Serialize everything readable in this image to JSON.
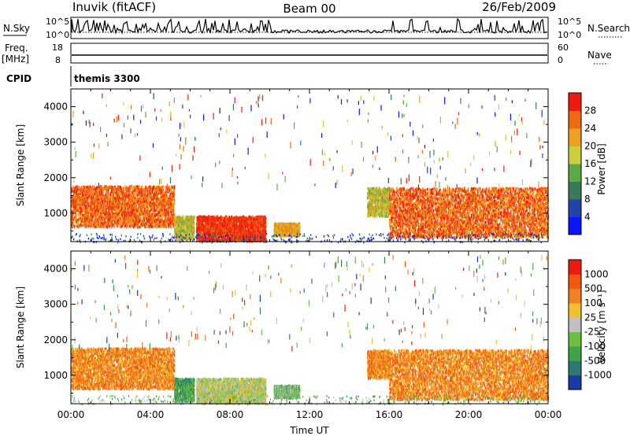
{
  "header": {
    "station": "Inuvik (fitACF)",
    "beam": "Beam 00",
    "date": "26/Feb/2009"
  },
  "panels": {
    "nsky": {
      "left_label": "N.Sky",
      "right_label": "N.Search",
      "left_ticks": [
        "10^5",
        "10^0"
      ],
      "right_ticks": [
        "10^5",
        "10^0"
      ]
    },
    "freq": {
      "left_label_line1": "Freq.",
      "left_label_line2": "[MHz]",
      "right_label": "Nave",
      "left_ticks": [
        "18",
        "8"
      ],
      "right_ticks": [
        "60",
        "0"
      ]
    },
    "cpid": {
      "label": "CPID",
      "value": "themis 3300"
    }
  },
  "chart_data": [
    {
      "type": "heatmap",
      "panel": "power",
      "ylabel": "Slant Range [km]",
      "xlabel": "",
      "yticks": [
        "1000",
        "2000",
        "3000",
        "4000"
      ],
      "ylim": [
        200,
        4500
      ],
      "xlim": [
        0,
        24
      ],
      "colorbar": {
        "label": "Power [dB]",
        "ticks": [
          "4",
          "8",
          "12",
          "16",
          "20",
          "24",
          "28"
        ],
        "colors": [
          "#0a14ff",
          "#2244aa",
          "#3a7a58",
          "#5aaa48",
          "#ccd040",
          "#f0a020",
          "#f06a10",
          "#ee1c10"
        ]
      },
      "scatter_regions": [
        {
          "t0": 0.0,
          "t1": 5.2,
          "r0": 600,
          "r1": 1750,
          "level": 6
        },
        {
          "t0": 5.2,
          "t1": 6.2,
          "r0": 250,
          "r1": 900,
          "level": 4
        },
        {
          "t0": 6.3,
          "t1": 9.8,
          "r0": 200,
          "r1": 900,
          "level": 7
        },
        {
          "t0": 10.2,
          "t1": 11.5,
          "r0": 350,
          "r1": 700,
          "level": 5
        },
        {
          "t0": 14.9,
          "t1": 16.0,
          "r0": 900,
          "r1": 1700,
          "level": 4
        },
        {
          "t0": 16.0,
          "t1": 24.0,
          "r0": 300,
          "r1": 1700,
          "level": 6
        }
      ]
    },
    {
      "type": "heatmap",
      "panel": "velocity",
      "ylabel": "Slant Range [km]",
      "xlabel": "Time UT",
      "xticks": [
        "00:00",
        "04:00",
        "08:00",
        "12:00",
        "16:00",
        "20:00",
        "00:00"
      ],
      "yticks": [
        "1000",
        "2000",
        "3000",
        "4000"
      ],
      "ylim": [
        200,
        4500
      ],
      "xlim": [
        0,
        24
      ],
      "colorbar": {
        "label": "Velocity [m s⁻¹]",
        "ticks": [
          "1000",
          "500",
          "100",
          "25",
          "-25",
          "-100",
          "-500",
          "-1000"
        ],
        "colors": [
          "#1a3aa8",
          "#2f7a70",
          "#3fa448",
          "#6ac040",
          "#c0c0c0",
          "#f0c030",
          "#f08020",
          "#f05a10",
          "#ee1c10"
        ]
      },
      "scatter_regions": [
        {
          "t0": 0.0,
          "t1": 5.2,
          "r0": 600,
          "r1": 1750,
          "level": 6
        },
        {
          "t0": 5.2,
          "t1": 6.2,
          "r0": 250,
          "r1": 900,
          "level": 2
        },
        {
          "t0": 6.3,
          "t1": 9.8,
          "r0": 200,
          "r1": 900,
          "level": 4
        },
        {
          "t0": 10.2,
          "t1": 11.5,
          "r0": 350,
          "r1": 700,
          "level": 3
        },
        {
          "t0": 14.9,
          "t1": 16.0,
          "r0": 900,
          "r1": 1700,
          "level": 6
        },
        {
          "t0": 16.0,
          "t1": 24.0,
          "r0": 300,
          "r1": 1700,
          "level": 6
        }
      ]
    }
  ]
}
